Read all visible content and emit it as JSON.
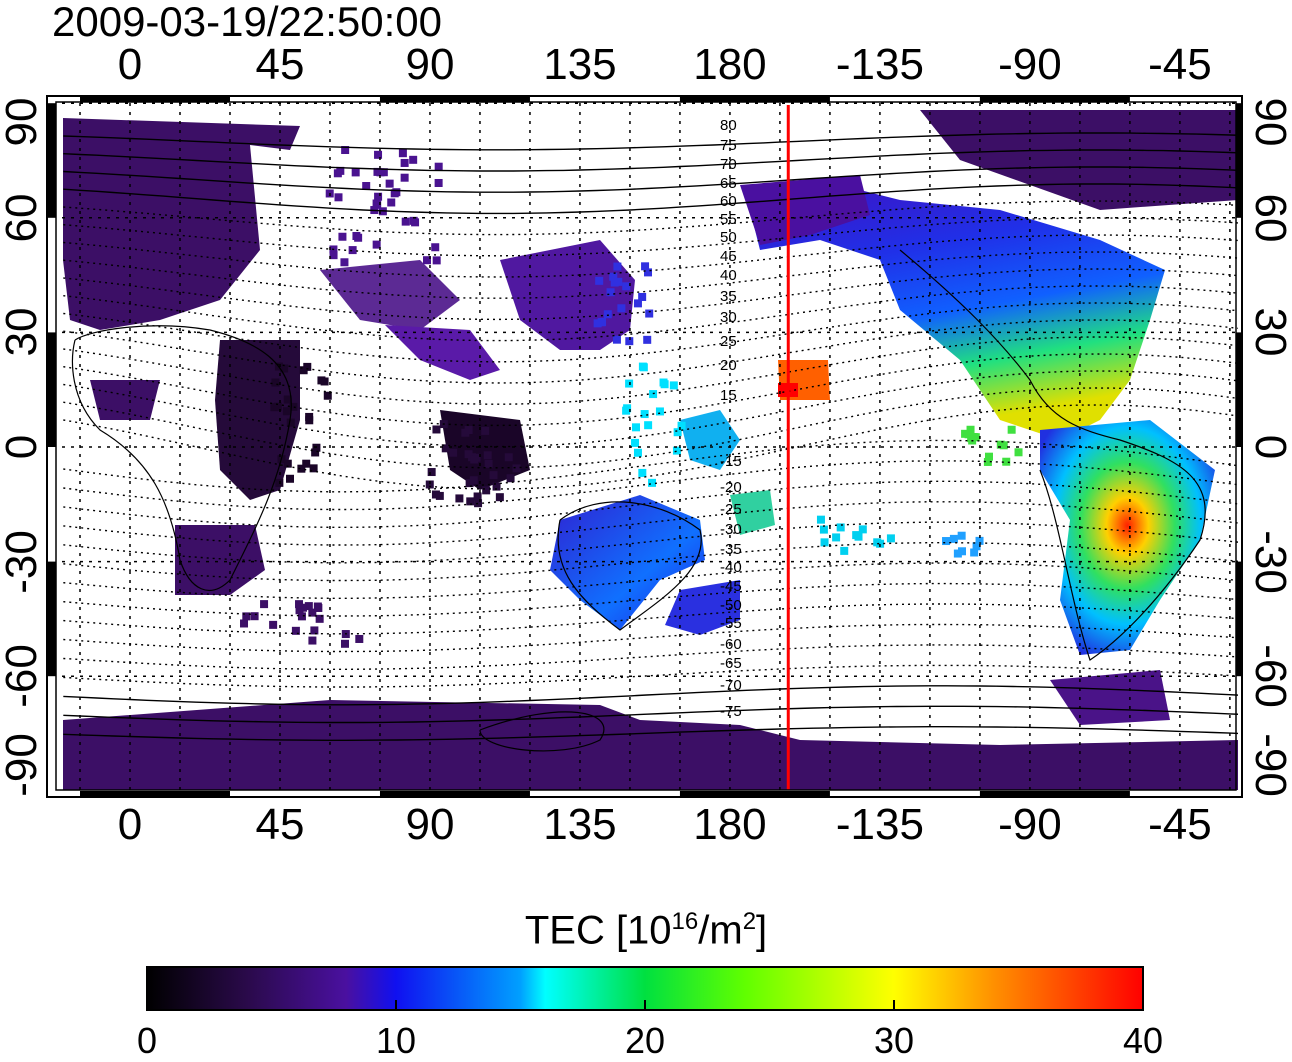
{
  "title": "2009-03-19/22:50:00",
  "x_ticks_top": [
    "0",
    "45",
    "90",
    "135",
    "180",
    "-135",
    "-90",
    "-45"
  ],
  "x_ticks_bottom": [
    "0",
    "45",
    "90",
    "135",
    "180",
    "-135",
    "-90",
    "-45"
  ],
  "x_tick_lons": [
    0,
    45,
    90,
    135,
    180,
    225,
    270,
    315
  ],
  "y_ticks_left": [
    "90",
    "60",
    "30",
    "0",
    "-30",
    "-60",
    "-90"
  ],
  "y_ticks_right": [
    "90",
    "60",
    "30",
    "0",
    "-30",
    "-60",
    "-90"
  ],
  "y_tick_lats": [
    90,
    60,
    30,
    0,
    -30,
    -60,
    -90
  ],
  "contour_labels_north": [
    "80",
    "75",
    "70",
    "65",
    "60",
    "55",
    "50",
    "45",
    "40",
    "35",
    "30",
    "25",
    "20",
    "15"
  ],
  "contour_labels_south": [
    "-15",
    "-20",
    "-25",
    "-30",
    "-35",
    "-40",
    "-45",
    "-50",
    "-55",
    "-60",
    "-65",
    "-70",
    "-75"
  ],
  "colorbar": {
    "title_main": "TEC  [10",
    "title_sup1": "16",
    "title_mid": "/m",
    "title_sup2": "2",
    "title_end": "]",
    "ticks": [
      "0",
      "10",
      "20",
      "30",
      "40"
    ],
    "range": [
      0,
      40
    ]
  },
  "marker_line_lon": -162.5,
  "colors": {
    "marker": "#ff0000"
  }
}
